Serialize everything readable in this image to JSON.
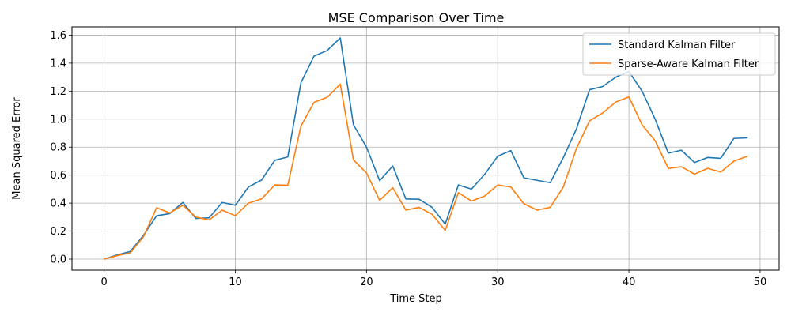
{
  "chart_data": {
    "type": "line",
    "title": "MSE Comparison Over Time",
    "xlabel": "Time Step",
    "ylabel": "Mean Squared Error",
    "xlim": [
      -2.45,
      51.45
    ],
    "ylim": [
      -0.079,
      1.659
    ],
    "xticks": [
      0,
      10,
      20,
      30,
      40,
      50
    ],
    "yticks": [
      0.0,
      0.2,
      0.4,
      0.6,
      0.8,
      1.0,
      1.2,
      1.4,
      1.6
    ],
    "xtick_labels": [
      "0",
      "10",
      "20",
      "30",
      "40",
      "50"
    ],
    "ytick_labels": [
      "0.0",
      "0.2",
      "0.4",
      "0.6",
      "0.8",
      "1.0",
      "1.2",
      "1.4",
      "1.6"
    ],
    "grid": true,
    "legend_position": "top-right",
    "x": [
      0,
      1,
      2,
      3,
      4,
      5,
      6,
      7,
      8,
      9,
      10,
      11,
      12,
      13,
      14,
      15,
      16,
      17,
      18,
      19,
      20,
      21,
      22,
      23,
      24,
      25,
      26,
      27,
      28,
      29,
      30,
      31,
      32,
      33,
      34,
      35,
      36,
      37,
      38,
      39,
      40,
      41,
      42,
      43,
      44,
      45,
      46,
      47,
      48,
      49
    ],
    "series": [
      {
        "name": "Standard Kalman Filter",
        "color": "#1f77b4",
        "values": [
          0.0,
          0.03,
          0.055,
          0.17,
          0.31,
          0.325,
          0.405,
          0.29,
          0.295,
          0.405,
          0.385,
          0.515,
          0.565,
          0.705,
          0.73,
          1.26,
          1.45,
          1.49,
          1.58,
          0.96,
          0.8,
          0.56,
          0.665,
          0.43,
          0.428,
          0.37,
          0.25,
          0.53,
          0.5,
          0.605,
          0.735,
          0.775,
          0.58,
          0.563,
          0.546,
          0.725,
          0.93,
          1.21,
          1.233,
          1.3,
          1.34,
          1.2,
          1.0,
          0.757,
          0.778,
          0.69,
          0.726,
          0.72,
          0.862,
          0.866
        ]
      },
      {
        "name": "Sparse-Aware Kalman Filter",
        "color": "#ff7f0e",
        "values": [
          0.0,
          0.025,
          0.045,
          0.16,
          0.367,
          0.33,
          0.385,
          0.3,
          0.28,
          0.35,
          0.31,
          0.4,
          0.43,
          0.53,
          0.528,
          0.95,
          1.12,
          1.156,
          1.25,
          0.71,
          0.615,
          0.42,
          0.51,
          0.35,
          0.37,
          0.32,
          0.205,
          0.475,
          0.415,
          0.45,
          0.53,
          0.515,
          0.395,
          0.35,
          0.37,
          0.515,
          0.79,
          0.988,
          1.044,
          1.122,
          1.158,
          0.96,
          0.845,
          0.648,
          0.66,
          0.607,
          0.648,
          0.622,
          0.7,
          0.734
        ]
      }
    ]
  }
}
